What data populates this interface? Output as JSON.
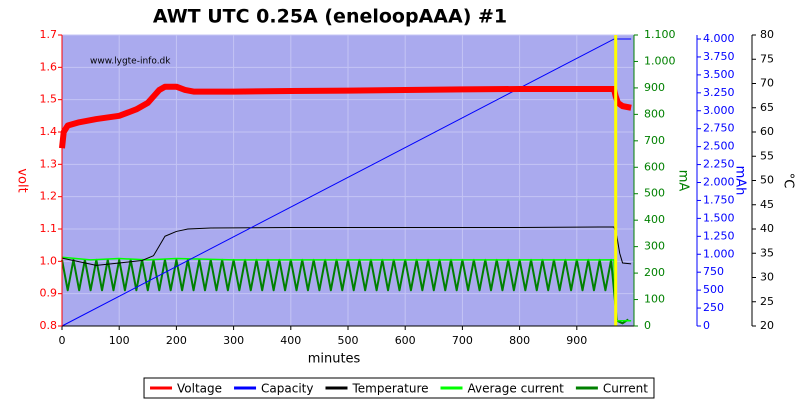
{
  "chart_data": {
    "type": "line",
    "title": "AWT UTC 0.25A (eneloopAAA) #1",
    "annotation": "www.lygte-info.dk",
    "xlabel": "minutes",
    "ylabel": "volt",
    "y2label": "mA",
    "y3label": "mAh",
    "y4label": "°C",
    "axis_colors": {
      "y": "#ff0000",
      "y2": "#008000",
      "y3": "#0000ff",
      "y4": "#000000"
    },
    "background": "#aaaaee",
    "grid": true,
    "legend": "bottom",
    "vertical_line": {
      "x": 968,
      "color": "#ffff00"
    },
    "xlim": [
      0,
      1000
    ],
    "xticks": [
      0,
      100,
      200,
      300,
      400,
      500,
      600,
      700,
      800,
      900
    ],
    "ylim": [
      0.8,
      1.7
    ],
    "yticks": [
      0.8,
      0.9,
      {
        "value": 1,
        "label": "1.0"
      },
      1.1,
      1.2,
      1.3,
      1.4,
      1.5,
      1.6,
      1.7
    ],
    "y2lim": [
      0,
      1100
    ],
    "y2ticks": [
      0,
      100,
      200,
      300,
      400,
      500,
      600,
      700,
      800,
      900,
      {
        "value": 1000,
        "label": "1.000"
      },
      {
        "value": 1100,
        "label": "1.100"
      }
    ],
    "y3lim": [
      0,
      4056
    ],
    "y3ticks": [
      0,
      250,
      500,
      750,
      {
        "value": 1000,
        "label": "1.000"
      },
      {
        "value": 1250,
        "label": "1.250"
      },
      {
        "value": 1500,
        "label": "1.500"
      },
      {
        "value": 1750,
        "label": "1.750"
      },
      {
        "value": 2000,
        "label": "2.000"
      },
      {
        "value": 2250,
        "label": "2.250"
      },
      {
        "value": 2500,
        "label": "2.500"
      },
      {
        "value": 2750,
        "label": "2.750"
      },
      {
        "value": 3000,
        "label": "3.000"
      },
      {
        "value": 3250,
        "label": "3.250"
      },
      {
        "value": 3500,
        "label": "3.500"
      },
      {
        "value": 3750,
        "label": "3.750"
      },
      {
        "value": 4000,
        "label": "4.000"
      }
    ],
    "y4lim": [
      20,
      80
    ],
    "y4ticks": [
      20,
      25,
      30,
      35,
      40,
      45,
      50,
      55,
      60,
      65,
      70,
      75,
      80
    ],
    "series": [
      {
        "name": "Current",
        "color": "#008000",
        "axis": "y2",
        "width": 2,
        "x": [
          0,
          10,
          20,
          30,
          40,
          50,
          60,
          70,
          80,
          90,
          100,
          110,
          120,
          130,
          140,
          150,
          160,
          170,
          180,
          190,
          200,
          210,
          220,
          230,
          240,
          250,
          260,
          270,
          280,
          290,
          300,
          310,
          320,
          330,
          340,
          350,
          360,
          370,
          380,
          390,
          400,
          410,
          420,
          430,
          440,
          450,
          460,
          470,
          480,
          490,
          500,
          510,
          520,
          530,
          540,
          550,
          560,
          570,
          580,
          590,
          600,
          610,
          620,
          630,
          640,
          650,
          660,
          670,
          680,
          690,
          700,
          710,
          720,
          730,
          740,
          750,
          760,
          770,
          780,
          790,
          800,
          810,
          820,
          830,
          840,
          850,
          860,
          870,
          880,
          890,
          900,
          910,
          920,
          930,
          940,
          950,
          960,
          970,
          980,
          990
        ],
        "values": [
          250,
          135,
          250,
          135,
          250,
          135,
          250,
          135,
          250,
          135,
          250,
          135,
          250,
          135,
          250,
          135,
          250,
          135,
          250,
          135,
          250,
          135,
          250,
          135,
          250,
          135,
          250,
          135,
          250,
          135,
          250,
          135,
          250,
          135,
          250,
          135,
          250,
          135,
          250,
          135,
          250,
          135,
          250,
          135,
          250,
          135,
          250,
          135,
          250,
          135,
          250,
          135,
          250,
          135,
          250,
          135,
          250,
          135,
          250,
          135,
          250,
          135,
          250,
          135,
          250,
          135,
          250,
          135,
          250,
          135,
          250,
          135,
          250,
          135,
          250,
          135,
          250,
          135,
          250,
          135,
          250,
          135,
          250,
          135,
          250,
          135,
          250,
          135,
          250,
          135,
          250,
          135,
          250,
          135,
          250,
          135,
          250,
          20,
          10,
          25
        ]
      },
      {
        "name": "Average current",
        "color": "#00ff00",
        "axis": "y2",
        "width": 1.5,
        "x": [
          0,
          50,
          100,
          150,
          200,
          300,
          600,
          965,
          968,
          995
        ],
        "values": [
          260,
          250,
          255,
          250,
          255,
          250,
          250,
          250,
          20,
          20
        ]
      },
      {
        "name": "Temperature",
        "color": "#000000",
        "axis": "y4",
        "width": 1,
        "x": [
          0,
          20,
          60,
          100,
          140,
          160,
          170,
          180,
          200,
          220,
          260,
          400,
          600,
          800,
          940,
          965,
          970,
          975,
          980,
          995
        ],
        "values": [
          34,
          33.5,
          32.5,
          33,
          33.5,
          34.5,
          36.5,
          38.5,
          39.5,
          40,
          40.2,
          40.3,
          40.3,
          40.3,
          40.4,
          40.4,
          38.5,
          35,
          33,
          32.8
        ]
      },
      {
        "name": "Capacity",
        "color": "#0000ff",
        "axis": "y3",
        "width": 1,
        "x": [
          0,
          965,
          995
        ],
        "values": [
          0,
          4000,
          4000
        ]
      },
      {
        "name": "Voltage",
        "color": "#ff0000",
        "axis": "y",
        "width": 6,
        "x": [
          0,
          3,
          10,
          30,
          60,
          100,
          130,
          150,
          160,
          170,
          180,
          200,
          215,
          230,
          300,
          400,
          500,
          600,
          700,
          800,
          900,
          965,
          968,
          972,
          980,
          995
        ],
        "values": [
          1.35,
          1.4,
          1.42,
          1.43,
          1.44,
          1.45,
          1.47,
          1.49,
          1.51,
          1.53,
          1.54,
          1.54,
          1.53,
          1.525,
          1.525,
          1.527,
          1.528,
          1.53,
          1.532,
          1.533,
          1.533,
          1.533,
          1.51,
          1.49,
          1.48,
          1.475
        ]
      }
    ],
    "legend_order": [
      4,
      3,
      2,
      1,
      0
    ]
  }
}
